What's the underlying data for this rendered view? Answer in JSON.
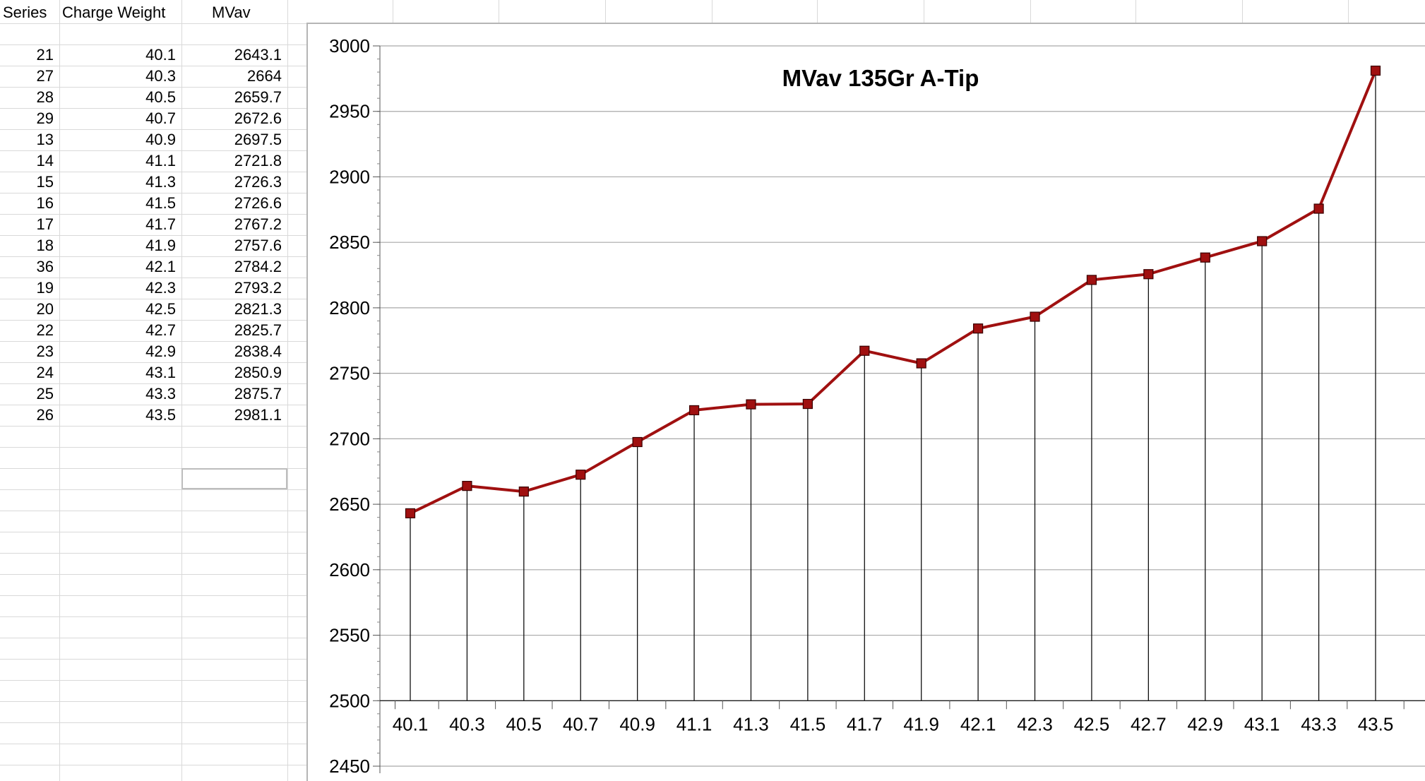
{
  "table": {
    "headers": [
      "Series",
      "Charge Weight",
      "MVav"
    ],
    "rows": [
      [
        "21",
        "40.1",
        "2643.1"
      ],
      [
        "27",
        "40.3",
        "2664"
      ],
      [
        "28",
        "40.5",
        "2659.7"
      ],
      [
        "29",
        "40.7",
        "2672.6"
      ],
      [
        "13",
        "40.9",
        "2697.5"
      ],
      [
        "14",
        "41.1",
        "2721.8"
      ],
      [
        "15",
        "41.3",
        "2726.3"
      ],
      [
        "16",
        "41.5",
        "2726.6"
      ],
      [
        "17",
        "41.7",
        "2767.2"
      ],
      [
        "18",
        "41.9",
        "2757.6"
      ],
      [
        "36",
        "42.1",
        "2784.2"
      ],
      [
        "19",
        "42.3",
        "2793.2"
      ],
      [
        "20",
        "42.5",
        "2821.3"
      ],
      [
        "22",
        "42.7",
        "2825.7"
      ],
      [
        "23",
        "42.9",
        "2838.4"
      ],
      [
        "24",
        "43.1",
        "2850.9"
      ],
      [
        "25",
        "43.3",
        "2875.7"
      ],
      [
        "26",
        "43.5",
        "2981.1"
      ]
    ]
  },
  "chart_data": {
    "type": "line",
    "title": "MVav 135Gr A-Tip",
    "xlabel": "",
    "ylabel": "",
    "categories": [
      "40.1",
      "40.3",
      "40.5",
      "40.7",
      "40.9",
      "41.1",
      "41.3",
      "41.5",
      "41.7",
      "41.9",
      "42.1",
      "42.3",
      "42.5",
      "42.7",
      "42.9",
      "43.1",
      "43.3",
      "43.5"
    ],
    "series": [
      {
        "values": [
          2643.1,
          2664,
          2659.7,
          2672.6,
          2697.5,
          2721.8,
          2726.3,
          2726.6,
          2767.2,
          2757.6,
          2784.2,
          2793.2,
          2821.3,
          2825.7,
          2838.4,
          2850.9,
          2875.7,
          2981.1
        ],
        "color": "#a01010"
      }
    ],
    "ylim": [
      2450,
      3000
    ],
    "yticks": [
      2450,
      2500,
      2550,
      2600,
      2650,
      2700,
      2750,
      2800,
      2850,
      2900,
      2950,
      3000
    ],
    "x_axis_crosses_at": 2500,
    "drop_lines": true,
    "grid": "horizontal",
    "legend": "none",
    "marker": "square"
  }
}
